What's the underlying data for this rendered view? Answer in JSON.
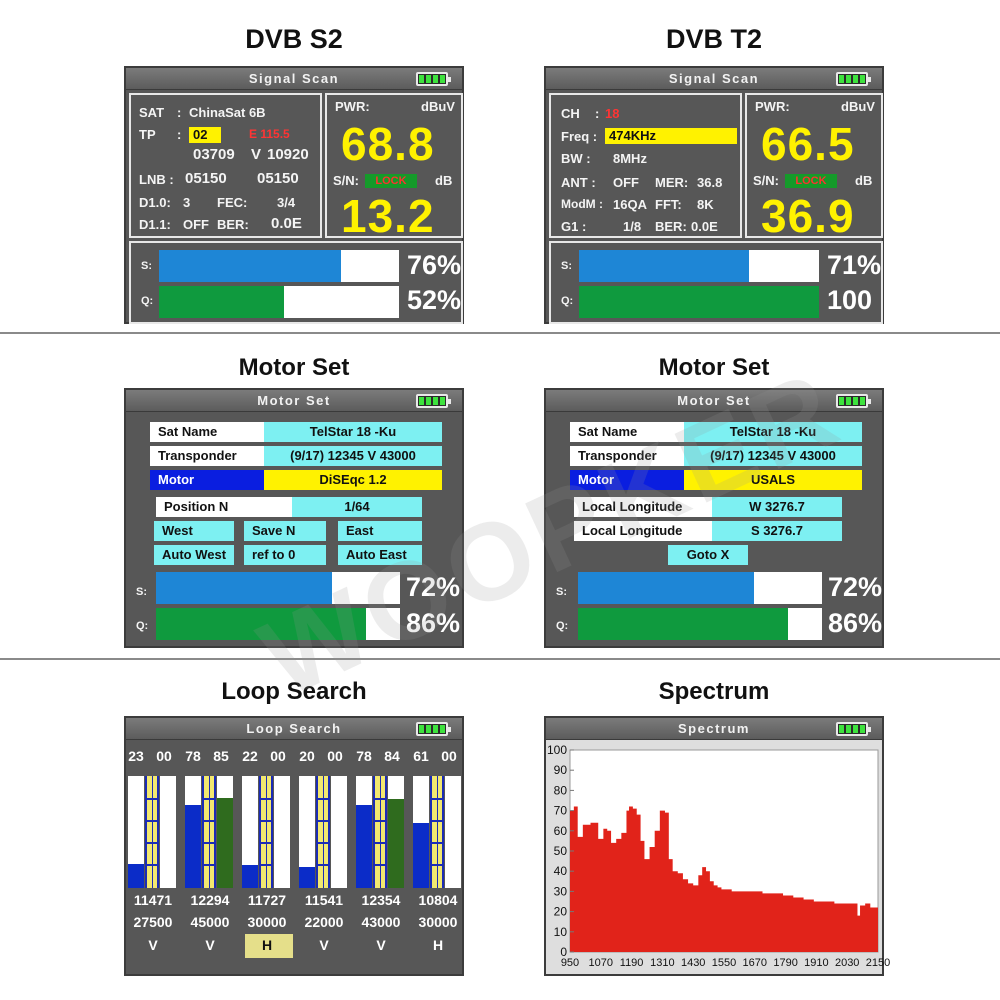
{
  "watermark": "WOOPKER",
  "colors": {
    "screen_bg": "#575757",
    "value_yellow": "#fff200",
    "signal_blue": "#1e86d6",
    "quality_green": "#0f9a3e",
    "lock_green": "#159a2a",
    "cyan_cell": "#7df0f2",
    "motor_blue": "#0a1ee0",
    "spectrum_red": "#e1231a"
  },
  "icons": [
    "battery-icon"
  ],
  "dvbs2": {
    "heading": "DVB S2",
    "title": "Signal  Scan",
    "sat_label": "SAT",
    "sat_value": "ChinaSat 6B",
    "tp_label": "TP",
    "tp_value": "02",
    "tp_e": "E 115.5",
    "freq": "03709",
    "pol": "V",
    "symrate": "10920",
    "lnb_label": "LNB :",
    "lnb1": "05150",
    "lnb2": "05150",
    "d10_label": "D1.0:",
    "d10_value": "3",
    "fec_label": "FEC:",
    "fec_value": "3/4",
    "d11_label": "D1.1:",
    "d11_value": "OFF",
    "ber_label": "BER:",
    "ber_value": "0.0E",
    "pwr_label": "PWR:",
    "pwr_unit": "dBuV",
    "pwr_value": "68.8",
    "sn_label": "S/N:",
    "lock": "LOCK",
    "sn_unit": "dB",
    "sn_value": "13.2",
    "s_label": "S:",
    "s_level": 76,
    "s_pct": "76%",
    "q_label": "Q:",
    "q_level": 52,
    "q_pct": "52%"
  },
  "dvbt2": {
    "heading": "DVB T2",
    "title": "Signal  Scan",
    "ch_label": "CH",
    "ch_value": "18",
    "freq_label": "Freq :",
    "freq_value": "474KHz",
    "bw_label": "BW :",
    "bw_value": "8MHz",
    "ant_label": "ANT :",
    "ant_value": "OFF",
    "mer_label": "MER:",
    "mer_value": "36.8",
    "modm_label": "ModM :",
    "modm_value": "16QA",
    "fft_label": "FFT:",
    "fft_value": "8K",
    "g1_label": "G1 :",
    "g1_value": "1/8",
    "ber_label": "BER:",
    "ber_value": "0.0E",
    "pwr_label": "PWR:",
    "pwr_unit": "dBuV",
    "pwr_value": "66.5",
    "sn_label": "S/N:",
    "lock": "LOCK",
    "sn_unit": "dB",
    "sn_value": "36.9",
    "s_label": "S:",
    "s_level": 71,
    "s_pct": "71%",
    "q_label": "Q:",
    "q_level": 100,
    "q_pct": "100"
  },
  "motor1": {
    "heading": "Motor Set",
    "title": "Motor  Set",
    "satname_label": "Sat  Name",
    "satname_value": "TelStar  18  -Ku",
    "tp_label": "Transponder",
    "tp_value": "(9/17) 12345 V 43000",
    "motor_label": "Motor",
    "motor_value": "DiSEqc 1.2",
    "position_label": "Position  N",
    "position_value": "1/64",
    "west": "West",
    "save": "Save   N",
    "east": "East",
    "auto_west": "Auto  West",
    "ref": "ref   to    0",
    "auto_east": "Auto  East",
    "s_label": "S:",
    "s_level": 72,
    "s_pct": "72%",
    "q_label": "Q:",
    "q_level": 86,
    "q_pct": "86%"
  },
  "motor2": {
    "heading": "Motor Set",
    "title": "Motor  Set",
    "satname_label": "Sat  Name",
    "satname_value": "TelStar  18  -Ku",
    "tp_label": "Transponder",
    "tp_value": "(9/17) 12345 V 43000",
    "motor_label": "Motor",
    "motor_value": "USALS",
    "lon1_label": "Local Longitude",
    "lon1_value": "W    3276.7",
    "lon2_label": "Local Longitude",
    "lon2_value": "S    3276.7",
    "goto": "Goto  X",
    "s_label": "S:",
    "s_level": 72,
    "s_pct": "72%",
    "q_label": "Q:",
    "q_level": 86,
    "q_pct": "86%"
  },
  "loop": {
    "heading": "Loop Search",
    "title": "Loop  Search",
    "items": [
      {
        "s_text": "23",
        "q_text": "00",
        "s": 23,
        "q": 0,
        "freq": "11471",
        "sym": "27500",
        "pol": "V"
      },
      {
        "s_text": "78",
        "q_text": "85",
        "s": 78,
        "q": 85,
        "freq": "12294",
        "sym": "45000",
        "pol": "V"
      },
      {
        "s_text": "22",
        "q_text": "00",
        "s": 22,
        "q": 0,
        "freq": "11727",
        "sym": "30000",
        "pol": "H"
      },
      {
        "s_text": "20",
        "q_text": "00",
        "s": 20,
        "q": 0,
        "freq": "11541",
        "sym": "22000",
        "pol": "V"
      },
      {
        "s_text": "78",
        "q_text": "84",
        "s": 78,
        "q": 84,
        "freq": "12354",
        "sym": "43000",
        "pol": "V"
      },
      {
        "s_text": "61",
        "q_text": "00",
        "s": 61,
        "q": 0,
        "freq": "10804",
        "sym": "30000",
        "pol": "H"
      }
    ],
    "selected_index": 2
  },
  "spectrum": {
    "heading": "Spectrum",
    "title": "Spectrum",
    "chart_data": {
      "type": "area",
      "xlabel": "",
      "ylabel": "",
      "xlim": [
        950,
        2150
      ],
      "ylim": [
        0,
        100
      ],
      "x_ticks": [
        950,
        1070,
        1190,
        1310,
        1430,
        1550,
        1670,
        1790,
        1910,
        2030,
        2150
      ],
      "y_ticks": [
        0,
        10,
        20,
        30,
        40,
        50,
        60,
        70,
        80,
        90,
        100
      ],
      "grid": false,
      "x": [
        950,
        965,
        980,
        1000,
        1030,
        1060,
        1080,
        1095,
        1110,
        1130,
        1150,
        1170,
        1180,
        1195,
        1210,
        1225,
        1240,
        1260,
        1280,
        1300,
        1320,
        1335,
        1350,
        1370,
        1390,
        1410,
        1430,
        1450,
        1465,
        1480,
        1495,
        1510,
        1525,
        1540,
        1560,
        1580,
        1600,
        1640,
        1680,
        1700,
        1740,
        1780,
        1820,
        1860,
        1900,
        1940,
        1980,
        2020,
        2060,
        2070,
        2080,
        2100,
        2120,
        2150
      ],
      "values": [
        70,
        72,
        57,
        63,
        64,
        56,
        61,
        60,
        54,
        56,
        59,
        70,
        72,
        71,
        68,
        55,
        46,
        52,
        60,
        70,
        69,
        46,
        40,
        39,
        36,
        34,
        33,
        38,
        42,
        40,
        35,
        33,
        32,
        31,
        31,
        30,
        30,
        30,
        30,
        29,
        29,
        28,
        27,
        26,
        25,
        25,
        24,
        24,
        24,
        18,
        23,
        24,
        22,
        23
      ]
    }
  }
}
